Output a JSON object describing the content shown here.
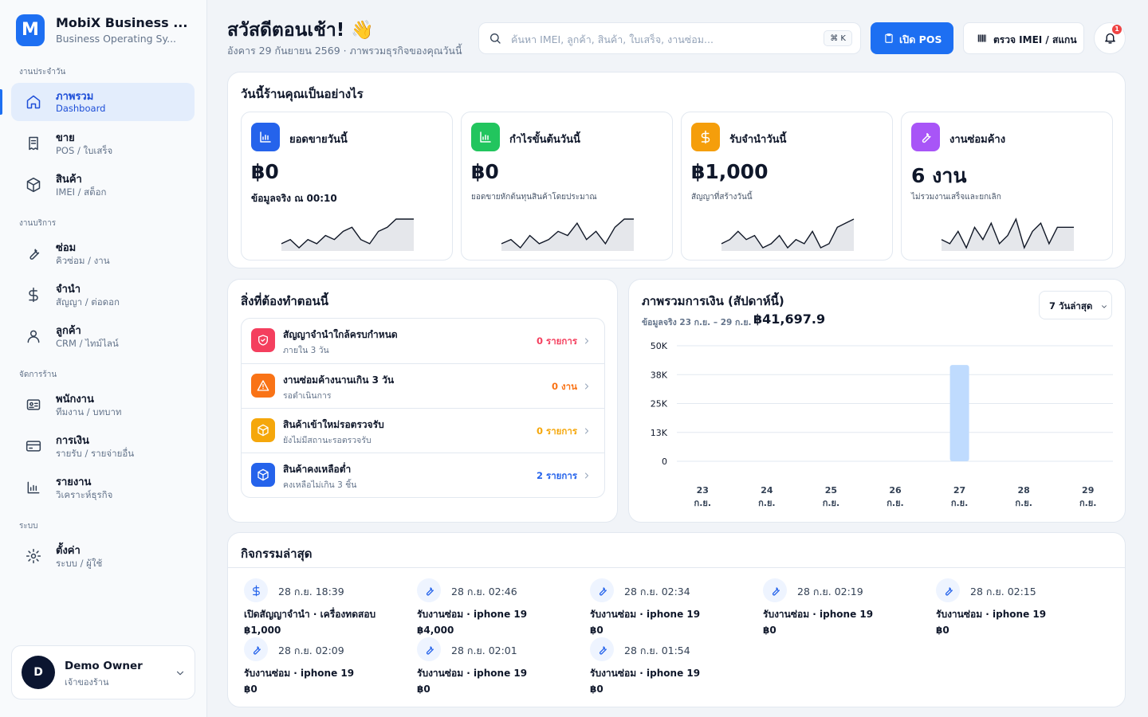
{
  "sidebar": {
    "logo": "M",
    "app_name": "MobiX Business ...",
    "app_sub": "Business Operating Sy...",
    "sections": [
      {
        "title": "งานประจำวัน",
        "items": [
          {
            "label": "ภาพรวม",
            "sub": "Dashboard",
            "active": true
          },
          {
            "label": "ขาย",
            "sub": "POS / ใบเสร็จ"
          },
          {
            "label": "สินค้า",
            "sub": "IMEI / สต็อก"
          }
        ]
      },
      {
        "title": "งานบริการ",
        "items": [
          {
            "label": "ซ่อม",
            "sub": "คิวซ่อม / งาน"
          },
          {
            "label": "จำนำ",
            "sub": "สัญญา / ต่อดอก"
          },
          {
            "label": "ลูกค้า",
            "sub": "CRM / ไทม์ไลน์"
          }
        ]
      },
      {
        "title": "จัดการร้าน",
        "items": [
          {
            "label": "พนักงาน",
            "sub": "ทีมงาน / บทบาท"
          },
          {
            "label": "การเงิน",
            "sub": "รายรับ / รายจ่ายอื่น"
          },
          {
            "label": "รายงาน",
            "sub": "วิเคราะห์ธุรกิจ"
          }
        ]
      },
      {
        "title": "ระบบ",
        "items": [
          {
            "label": "ตั้งค่า",
            "sub": "ระบบ / ผู้ใช้"
          }
        ]
      }
    ],
    "user": {
      "avatar": "D",
      "name": "Demo Owner",
      "role": "เจ้าของร้าน"
    }
  },
  "header": {
    "greeting": "สวัสดีตอนเช้า! 👋",
    "date": "อังคาร 29 กันยายน 2569 · ภาพรวมธุรกิจของคุณวันนี้",
    "search_placeholder": "ค้นหา IMEI, ลูกค้า, สินค้า, ใบเสร็จ, งานซ่อม...",
    "shortcut": "⌘ K",
    "pos_button": "เปิด POS",
    "imei_button": "ตรวจ IMEI / สแกน",
    "notification_count": 1
  },
  "today": {
    "title": "วันนี้ร้านคุณเป็นอย่างไร",
    "cards": [
      {
        "label": "ยอดขายวันนี้",
        "value": "฿0",
        "note": "ข้อมูลจริง ณ 00:10",
        "color": "#2563eb",
        "spark": [
          2,
          3,
          1,
          3,
          2,
          4,
          3,
          5,
          6,
          3,
          2,
          5,
          6,
          8,
          8,
          8
        ]
      },
      {
        "label": "กำไรขั้นต้นวันนี้",
        "value": "฿0",
        "note": "ยอดขายหักต้นทุนสินค้าโดยประมาณ",
        "color": "#22c55e",
        "spark": [
          3,
          4,
          2,
          5,
          3,
          4,
          6,
          5,
          8,
          4,
          6,
          3,
          7,
          9,
          9
        ]
      },
      {
        "label": "รับจำนำวันนี้",
        "value": "฿1,000",
        "note": "สัญญาที่สร้างวันนี้",
        "color": "#f59e0b",
        "spark": [
          3,
          4,
          6,
          4,
          5,
          2,
          3,
          5,
          2,
          4,
          3,
          6,
          2,
          3,
          7,
          8,
          9
        ]
      },
      {
        "label": "งานซ่อมค้าง",
        "value": "6 งาน",
        "note": "ไม่รวมงานเสร็จและยกเลิก",
        "color": "#a855f7",
        "spark": [
          4,
          3,
          6,
          2,
          7,
          4,
          8,
          3,
          5,
          9,
          2,
          6,
          8,
          3,
          7,
          7,
          7
        ]
      }
    ]
  },
  "todo": {
    "title": "สิ่งที่ต้องทำตอนนี้",
    "items": [
      {
        "title": "สัญญาจำนำใกล้ครบกำหนด",
        "sub": "ภายใน 3 วัน",
        "count": "0 รายการ",
        "color": "#f43f5e"
      },
      {
        "title": "งานซ่อมค้างนานเกิน 3 วัน",
        "sub": "รอดำเนินการ",
        "count": "0 งาน",
        "color": "#f97316"
      },
      {
        "title": "สินค้าเข้าใหม่รอตรวจรับ",
        "sub": "ยังไม่มีสถานะรอตรวจรับ",
        "count": "0 รายการ",
        "color": "#f5a70b"
      },
      {
        "title": "สินค้าคงเหลือต่ำ",
        "sub": "คงเหลือไม่เกิน 3 ชิ้น",
        "count": "2 รายการ",
        "color": "#2563eb"
      }
    ]
  },
  "chart_data": {
    "type": "bar",
    "title": "ภาพรวมการเงิน (สัปดาห์นี้)",
    "subtitle": "ข้อมูลจริง 23 ก.ย. – 29 ก.ย.",
    "total": "฿41,697.9",
    "range_button": "7 วันล่าสุด",
    "categories": [
      "23 ก.ย.",
      "24 ก.ย.",
      "25 ก.ย.",
      "26 ก.ย.",
      "27 ก.ย.",
      "28 ก.ย.",
      "29 ก.ย."
    ],
    "values": [
      0,
      0,
      0,
      0,
      41697.9,
      0,
      0
    ],
    "color": "#bfdbfe",
    "ylim": [
      0,
      50000
    ],
    "yticks": [
      0,
      {
        "value": 12500,
        "label": "13K"
      },
      {
        "value": 25000,
        "label": "25K"
      },
      {
        "value": 37500,
        "label": "38K"
      },
      {
        "value": 50000,
        "label": "50K"
      }
    ],
    "grid": true
  },
  "activity": {
    "title": "กิจกรรมล่าสุด",
    "items": [
      {
        "time": "28 ก.ย. 18:39",
        "title": "เปิดสัญญาจำนำ · เครื่องทดสอบ",
        "amount": "฿1,000"
      },
      {
        "time": "28 ก.ย. 02:46",
        "title": "รับงานซ่อม · iphone 19",
        "amount": "฿4,000"
      },
      {
        "time": "28 ก.ย. 02:34",
        "title": "รับงานซ่อม · iphone 19",
        "amount": "฿0"
      },
      {
        "time": "28 ก.ย. 02:19",
        "title": "รับงานซ่อม · iphone 19",
        "amount": "฿0"
      },
      {
        "time": "28 ก.ย. 02:15",
        "title": "รับงานซ่อม · iphone 19",
        "amount": "฿0"
      },
      {
        "time": "28 ก.ย. 02:09",
        "title": "รับงานซ่อม · iphone 19",
        "amount": "฿0"
      },
      {
        "time": "28 ก.ย. 02:01",
        "title": "รับงานซ่อม · iphone 19",
        "amount": "฿0"
      },
      {
        "time": "28 ก.ย. 01:54",
        "title": "รับงานซ่อม · iphone 19",
        "amount": "฿0"
      }
    ]
  }
}
